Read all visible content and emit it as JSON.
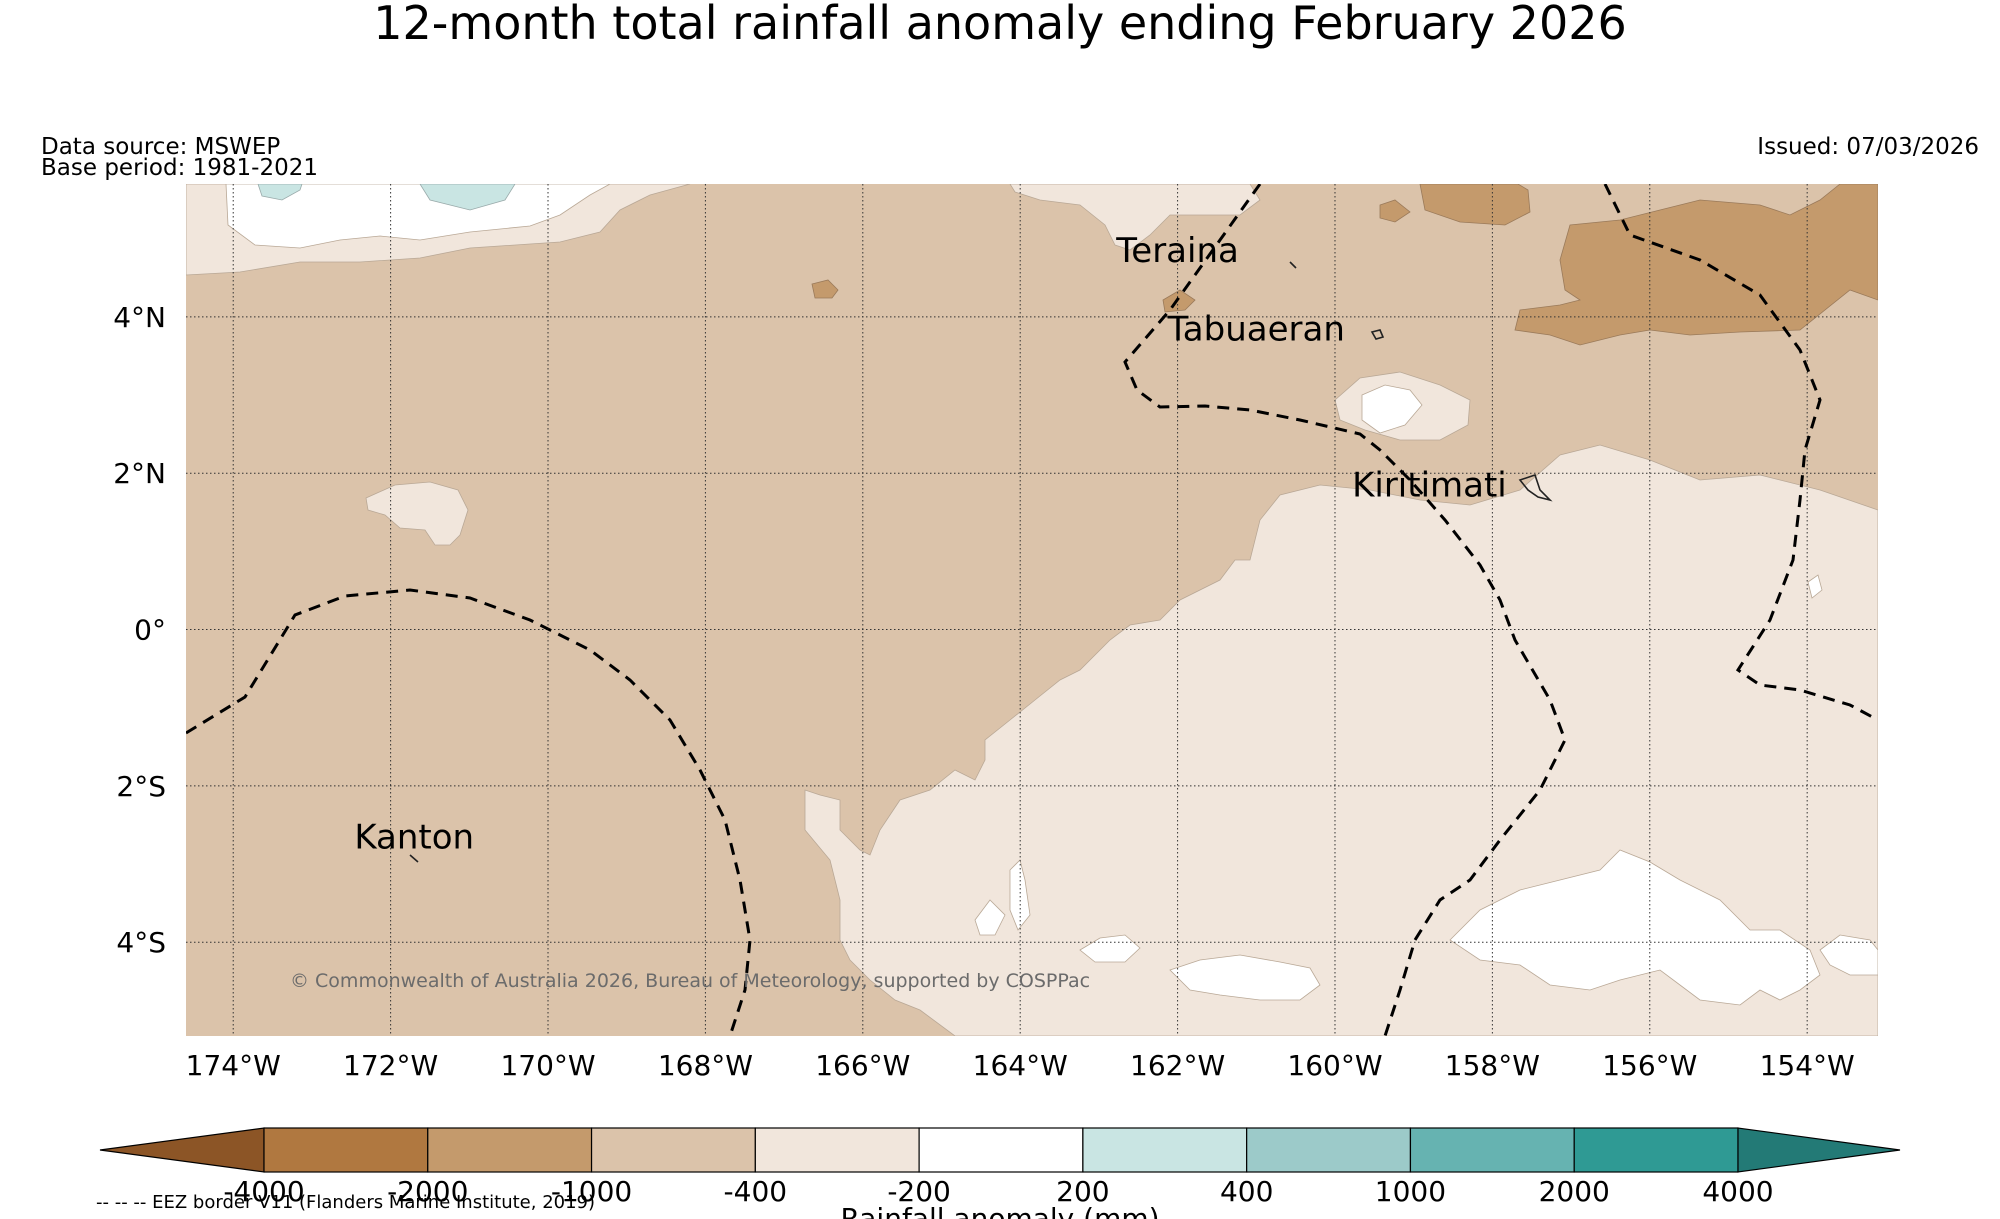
{
  "title": "12-month total rainfall anomaly ending February 2026",
  "data_source": "Data source: MSWEP",
  "base_period": "Base period: 1981-2021",
  "issued": "Issued: 07/03/2026",
  "copyright": "© Commonwealth of Australia 2026, Bureau of Meteorology, supported by COSPPac",
  "map": {
    "lon_range": [
      -174.6,
      -153.1
    ],
    "lat_range": [
      -5.2,
      5.7
    ],
    "lon_ticks": [
      {
        "value": -174,
        "label": "174°W"
      },
      {
        "value": -172,
        "label": "172°W"
      },
      {
        "value": -170,
        "label": "170°W"
      },
      {
        "value": -168,
        "label": "168°W"
      },
      {
        "value": -166,
        "label": "166°W"
      },
      {
        "value": -164,
        "label": "164°W"
      },
      {
        "value": -162,
        "label": "162°W"
      },
      {
        "value": -160,
        "label": "160°W"
      },
      {
        "value": -158,
        "label": "158°W"
      },
      {
        "value": -156,
        "label": "156°W"
      },
      {
        "value": -154,
        "label": "154°W"
      }
    ],
    "lat_ticks": [
      {
        "value": 4,
        "label": "4°N"
      },
      {
        "value": 2,
        "label": "2°N"
      },
      {
        "value": 0,
        "label": "0°"
      },
      {
        "value": -2,
        "label": "2°S"
      },
      {
        "value": -4,
        "label": "4°S"
      }
    ],
    "places": [
      {
        "name": "Teraina",
        "lon": -162.0,
        "lat": 4.7
      },
      {
        "name": "Tabuaeran",
        "lon": -161.0,
        "lat": 3.7
      },
      {
        "name": "Kiritimati",
        "lon": -158.8,
        "lat": 1.7
      },
      {
        "name": "Kanton",
        "lon": -171.7,
        "lat": -2.8
      }
    ]
  },
  "colorbar": {
    "label": "Rainfall anomaly (mm)",
    "ticks": [
      "-4000",
      "-2000",
      "-1000",
      "-400",
      "-200",
      "200",
      "400",
      "1000",
      "2000",
      "4000"
    ],
    "colors": {
      "under": "#8c5526",
      "c1": "#b07840",
      "c2": "#c49a6c",
      "c3": "#dbc3aa",
      "c4": "#f1e6dc",
      "c5": "#ffffff",
      "c6": "#c9e5e3",
      "c7": "#9ccac9",
      "c8": "#66b3b1",
      "c9": "#2f9a94",
      "over": "#237a76"
    }
  },
  "eez_note": "-- -- -- EEZ border V11 (Flanders Marine Institute, 2019)"
}
